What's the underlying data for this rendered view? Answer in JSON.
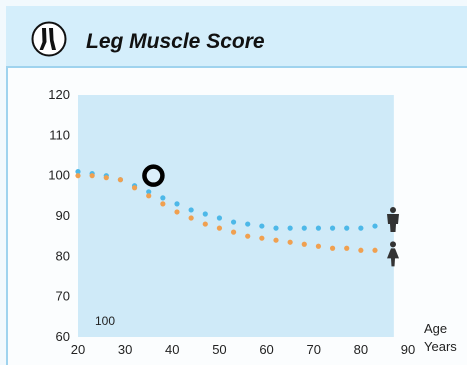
{
  "header": {
    "title": "Leg Muscle Score",
    "icon": "legs-icon"
  },
  "chart_data": {
    "type": "scatter",
    "xlim": [
      20,
      90
    ],
    "ylim": [
      60,
      120
    ],
    "x_ticks": [
      20,
      30,
      40,
      50,
      60,
      70,
      80,
      90
    ],
    "y_ticks": [
      60,
      70,
      80,
      90,
      100,
      110,
      120
    ],
    "xlabel_line1": "Age",
    "xlabel_line2": "Years",
    "score_label": "100",
    "grid": false,
    "series": [
      {
        "color": "#4db8e8",
        "marker": "male-icon",
        "x": [
          20,
          23,
          26,
          29,
          32,
          35,
          38,
          41,
          44,
          47,
          50,
          53,
          56,
          59,
          62,
          65,
          68,
          71,
          74,
          77,
          80,
          83
        ],
        "y": [
          101,
          100.5,
          100,
          99,
          97.5,
          96,
          94.5,
          93,
          91.5,
          90.5,
          89.5,
          88.5,
          88,
          87.5,
          87,
          87,
          87,
          87,
          87,
          87,
          87,
          87.5
        ]
      },
      {
        "color": "#f0a050",
        "marker": "female-icon",
        "x": [
          20,
          23,
          26,
          29,
          32,
          35,
          38,
          41,
          44,
          47,
          50,
          53,
          56,
          59,
          62,
          65,
          68,
          71,
          74,
          77,
          80,
          83
        ],
        "y": [
          100,
          100,
          99.5,
          99,
          97,
          95,
          93,
          91,
          89.5,
          88,
          87,
          86,
          85,
          84.5,
          84,
          83.5,
          83,
          82.5,
          82,
          82,
          81.5,
          81.5
        ]
      }
    ],
    "current_point": {
      "x": 36,
      "y": 100
    }
  }
}
